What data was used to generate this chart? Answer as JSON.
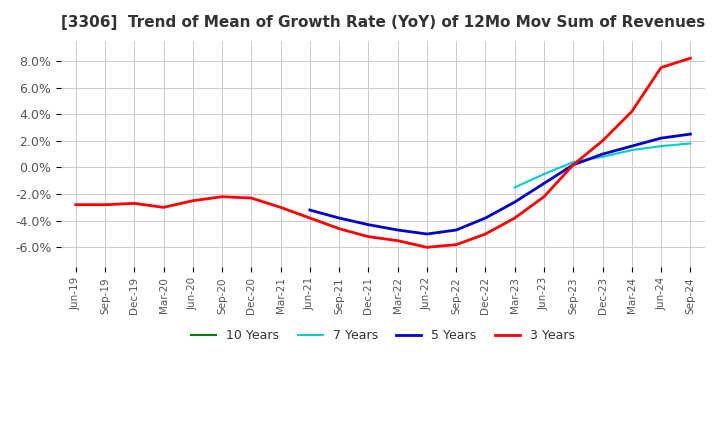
{
  "title": "[3306]  Trend of Mean of Growth Rate (YoY) of 12Mo Mov Sum of Revenues",
  "ylabel": "",
  "ylim": [
    -0.075,
    0.095
  ],
  "yticks": [
    -0.06,
    -0.04,
    -0.02,
    0.0,
    0.02,
    0.04,
    0.06,
    0.08
  ],
  "ytick_labels": [
    "-6.0%",
    "-4.0%",
    "-2.0%",
    "0.0%",
    "2.0%",
    "4.0%",
    "6.0%",
    "8.0%"
  ],
  "background_color": "#ffffff",
  "grid_color": "#cccccc",
  "series": {
    "3 Years": {
      "color": "#ff0000",
      "linewidth": 2.0
    },
    "5 Years": {
      "color": "#0000cc",
      "linewidth": 2.0
    },
    "7 Years": {
      "color": "#00cccc",
      "linewidth": 1.5
    },
    "10 Years": {
      "color": "#008000",
      "linewidth": 1.5
    }
  },
  "x_labels": [
    "Jun-19",
    "Sep-19",
    "Dec-19",
    "Mar-20",
    "Jun-20",
    "Sep-20",
    "Dec-20",
    "Mar-21",
    "Jun-21",
    "Sep-21",
    "Dec-21",
    "Mar-22",
    "Jun-22",
    "Sep-22",
    "Dec-22",
    "Mar-23",
    "Jun-23",
    "Sep-23",
    "Dec-23",
    "Mar-24",
    "Jun-24",
    "Sep-24"
  ],
  "y_3yr": [
    -0.028,
    -0.028,
    -0.027,
    -0.03,
    -0.025,
    -0.022,
    -0.023,
    -0.03,
    -0.038,
    -0.046,
    -0.052,
    -0.055,
    -0.06,
    -0.058,
    -0.05,
    -0.038,
    -0.022,
    0.002,
    0.02,
    0.042,
    0.075,
    0.082
  ],
  "y_5yr": [
    null,
    null,
    null,
    null,
    null,
    null,
    null,
    null,
    -0.032,
    -0.038,
    -0.043,
    -0.047,
    -0.05,
    -0.047,
    -0.038,
    -0.026,
    -0.012,
    0.002,
    0.01,
    0.016,
    0.022,
    0.025
  ],
  "y_7yr": [
    null,
    null,
    null,
    null,
    null,
    null,
    null,
    null,
    null,
    null,
    null,
    null,
    null,
    null,
    null,
    -0.015,
    -0.005,
    0.004,
    0.008,
    0.013,
    0.016,
    0.018
  ],
  "y_10yr": [
    null,
    null,
    null,
    null,
    null,
    null,
    null,
    null,
    null,
    null,
    null,
    null,
    null,
    null,
    null,
    null,
    null,
    null,
    null,
    null,
    null,
    null
  ]
}
